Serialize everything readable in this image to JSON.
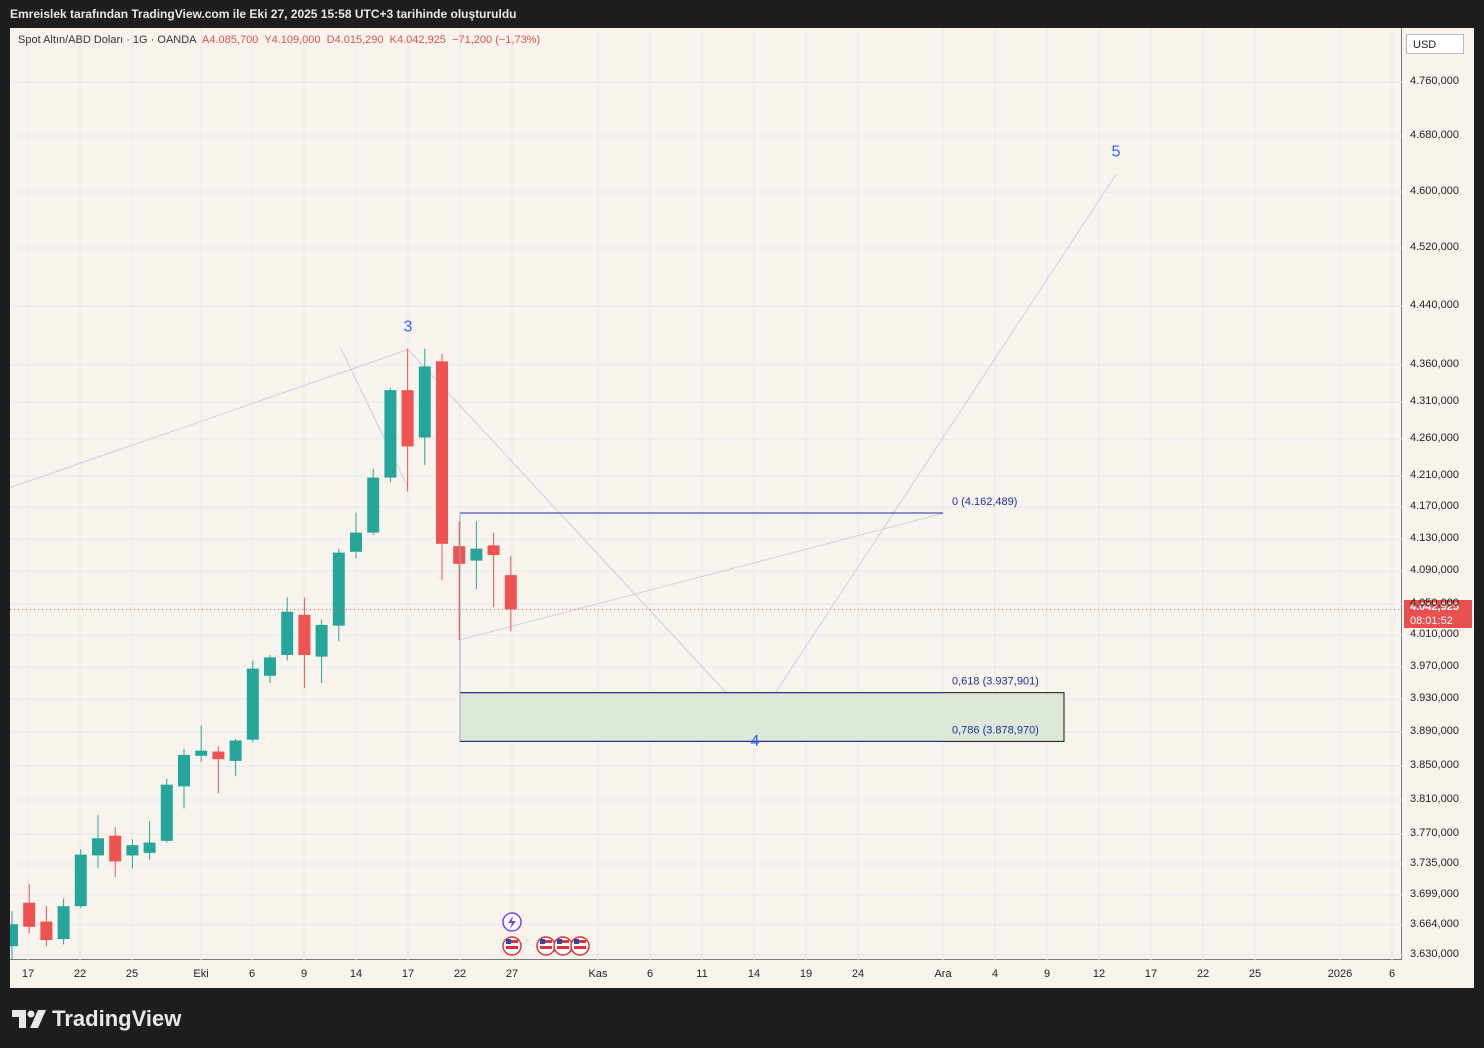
{
  "header": {
    "caption": "Emreislek tarafından TradingView.com ile Eki 27, 2025 15:58 UTC+3 tarihinde oluşturuldu"
  },
  "legend": {
    "symbol": "Spot Altın/ABD Doları · 1G · OANDA",
    "open": "A4.085,700",
    "high": "Y4.109,000",
    "low": "D4.015,290",
    "close": "K4.042,925",
    "change": "−71,200 (−1,73%)"
  },
  "axis": {
    "currency": "USD"
  },
  "last_price": {
    "value": "4.042,925",
    "countdown": "08:01:52"
  },
  "brand": {
    "logo_text": "TradingView"
  },
  "colors": {
    "up": "#26a69a",
    "down": "#ef5350",
    "fib": "#1e2f9e",
    "zone": "#dde8d8",
    "wave": "#c9cfe6"
  },
  "chart_data": {
    "type": "candlestick",
    "title": "Spot Altın/ABD Doları",
    "timeframe": "1G",
    "source": "OANDA",
    "y_ticks": [
      {
        "v": 4760,
        "label": "4.760,000"
      },
      {
        "v": 4680,
        "label": "4.680,000"
      },
      {
        "v": 4600,
        "label": "4.600,000"
      },
      {
        "v": 4520,
        "label": "4.520,000"
      },
      {
        "v": 4440,
        "label": "4.440,000"
      },
      {
        "v": 4360,
        "label": "4.360,000"
      },
      {
        "v": 4310,
        "label": "4.310,000"
      },
      {
        "v": 4260,
        "label": "4.260,000"
      },
      {
        "v": 4210,
        "label": "4.210,000"
      },
      {
        "v": 4170,
        "label": "4.170,000"
      },
      {
        "v": 4130,
        "label": "4.130,000"
      },
      {
        "v": 4090,
        "label": "4.090,000"
      },
      {
        "v": 4050,
        "label": "4.050,000"
      },
      {
        "v": 4010,
        "label": "4.010,000"
      },
      {
        "v": 3970,
        "label": "3.970,000"
      },
      {
        "v": 3930,
        "label": "3.930,000"
      },
      {
        "v": 3890,
        "label": "3.890,000"
      },
      {
        "v": 3850,
        "label": "3.850,000"
      },
      {
        "v": 3810,
        "label": "3.810,000"
      },
      {
        "v": 3770,
        "label": "3.770,000"
      },
      {
        "v": 3735,
        "label": "3.735,000"
      },
      {
        "v": 3699,
        "label": "3.699,000"
      },
      {
        "v": 3664,
        "label": "3.664,000"
      },
      {
        "v": 3630,
        "label": "3.630,000"
      }
    ],
    "x_labels": [
      "17",
      "22",
      "25",
      "Eki",
      "6",
      "9",
      "14",
      "17",
      "22",
      "27",
      "Kas",
      "6",
      "11",
      "14",
      "19",
      "24",
      "Ara",
      "4",
      "9",
      "12",
      "17",
      "22",
      "25",
      "2026",
      "6"
    ],
    "candles": [
      {
        "o": 3640,
        "h": 3680,
        "l": 3615,
        "c": 3665
      },
      {
        "o": 3690,
        "h": 3712,
        "l": 3655,
        "c": 3662
      },
      {
        "o": 3668,
        "h": 3686,
        "l": 3640,
        "c": 3647
      },
      {
        "o": 3648,
        "h": 3695,
        "l": 3642,
        "c": 3686
      },
      {
        "o": 3686,
        "h": 3752,
        "l": 3684,
        "c": 3746
      },
      {
        "o": 3745,
        "h": 3792,
        "l": 3730,
        "c": 3765
      },
      {
        "o": 3768,
        "h": 3778,
        "l": 3720,
        "c": 3738
      },
      {
        "o": 3745,
        "h": 3764,
        "l": 3730,
        "c": 3757
      },
      {
        "o": 3748,
        "h": 3785,
        "l": 3740,
        "c": 3760
      },
      {
        "o": 3762,
        "h": 3835,
        "l": 3760,
        "c": 3828
      },
      {
        "o": 3826,
        "h": 3870,
        "l": 3800,
        "c": 3863
      },
      {
        "o": 3862,
        "h": 3898,
        "l": 3855,
        "c": 3868
      },
      {
        "o": 3867,
        "h": 3873,
        "l": 3818,
        "c": 3858
      },
      {
        "o": 3856,
        "h": 3882,
        "l": 3838,
        "c": 3880
      },
      {
        "o": 3881,
        "h": 3978,
        "l": 3878,
        "c": 3968
      },
      {
        "o": 3959,
        "h": 3985,
        "l": 3950,
        "c": 3982
      },
      {
        "o": 3985,
        "h": 4058,
        "l": 3978,
        "c": 4040
      },
      {
        "o": 4036,
        "h": 4058,
        "l": 3944,
        "c": 3985
      },
      {
        "o": 3983,
        "h": 4030,
        "l": 3950,
        "c": 4023
      },
      {
        "o": 4022,
        "h": 4118,
        "l": 4002,
        "c": 4113
      },
      {
        "o": 4114,
        "h": 4163,
        "l": 4106,
        "c": 4138
      },
      {
        "o": 4138,
        "h": 4220,
        "l": 4135,
        "c": 4208
      },
      {
        "o": 4208,
        "h": 4329,
        "l": 4202,
        "c": 4326
      },
      {
        "o": 4326,
        "h": 4382,
        "l": 4190,
        "c": 4250
      },
      {
        "o": 4262,
        "h": 4382,
        "l": 4225,
        "c": 4358
      },
      {
        "o": 4365,
        "h": 4375,
        "l": 4079,
        "c": 4124
      },
      {
        "o": 4121,
        "h": 4152,
        "l": 4004,
        "c": 4099
      },
      {
        "o": 4103,
        "h": 4152,
        "l": 4068,
        "c": 4118
      },
      {
        "o": 4122,
        "h": 4138,
        "l": 4046,
        "c": 4110
      },
      {
        "o": 4085,
        "h": 4109,
        "l": 4015,
        "c": 4043
      }
    ],
    "last_price": 4042.925,
    "fibonacci": [
      {
        "label": "0 (4.162,489)",
        "price": 4162.489
      },
      {
        "label": "0,618 (3.937,901)",
        "price": 3937.901
      },
      {
        "label": "0,786 (3.878,970)",
        "price": 3878.97
      }
    ],
    "waves": [
      {
        "label": "3",
        "price": 4381
      },
      {
        "label": "4",
        "price": 3900
      },
      {
        "label": "5",
        "price": 4625
      }
    ]
  }
}
